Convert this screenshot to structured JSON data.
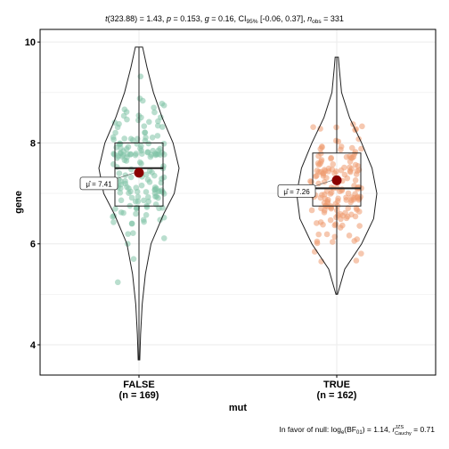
{
  "chart_data": {
    "type": "violin",
    "title": "t(323.88) = 1.43, p = 0.153, ĝ = 0.16, CI95% [-0.06, 0.37], n_obs = 331",
    "title_parts": {
      "t": "t",
      "t_value": "(323.88) = 1.43, ",
      "p": "p",
      "p_value": " = 0.153, ",
      "g": "g",
      "g_value": " = 0.16, CI",
      "ci_sub": "95%",
      "ci_value": " [-0.06, 0.37], ",
      "n": "n",
      "n_sub": "obs",
      "n_value": " = 331"
    },
    "subtitle": "In favor of null: logₑ(BF01) = 1.14, r^JZS_Cauchy = 0.71",
    "caption_parts": {
      "lead": "In favor of null: log",
      "e_sub": "e",
      "bf": "(BF",
      "bf_sub": "01",
      "close": ") = 1.14, ",
      "r": "r",
      "r_sup": "JZS",
      "r_sub": "Cauchy",
      "r_value": " = 0.71"
    },
    "xlabel": "mut",
    "ylabel": "gene",
    "ylim": [
      3.4,
      10.25
    ],
    "yticks": [
      4,
      6,
      8,
      10
    ],
    "grid": true,
    "groups": [
      {
        "name": "FALSE",
        "n_label": "(n = 169)",
        "color": "#7fc3a6",
        "mean": 7.41,
        "mean_label": "μ̂ = 7.41",
        "q1": 6.75,
        "median": 7.5,
        "q3": 8.0,
        "whisker_low": 3.7,
        "whisker_high": 9.9,
        "violin": [
          [
            3.7,
            0.02
          ],
          [
            4.2,
            0.04
          ],
          [
            4.8,
            0.08
          ],
          [
            5.4,
            0.16
          ],
          [
            6.0,
            0.3
          ],
          [
            6.6,
            0.62
          ],
          [
            7.0,
            0.88
          ],
          [
            7.5,
            1.0
          ],
          [
            8.0,
            0.85
          ],
          [
            8.5,
            0.58
          ],
          [
            9.0,
            0.36
          ],
          [
            9.5,
            0.2
          ],
          [
            9.9,
            0.09
          ]
        ]
      },
      {
        "name": "TRUE",
        "n_label": "(n = 162)",
        "color": "#ee9a70",
        "mean": 7.26,
        "mean_label": "μ̂ = 7.26",
        "q1": 6.75,
        "median": 7.1,
        "q3": 7.8,
        "whisker_low": 5.0,
        "whisker_high": 9.7,
        "violin": [
          [
            5.0,
            0.02
          ],
          [
            5.5,
            0.2
          ],
          [
            6.0,
            0.62
          ],
          [
            6.5,
            0.92
          ],
          [
            7.0,
            1.0
          ],
          [
            7.5,
            0.88
          ],
          [
            8.0,
            0.62
          ],
          [
            8.5,
            0.32
          ],
          [
            9.0,
            0.12
          ],
          [
            9.5,
            0.06
          ],
          [
            9.7,
            0.04
          ]
        ]
      }
    ]
  },
  "colors": {
    "mean_point": "#8b0000",
    "grid": "#ebebeb",
    "frame": "#000000"
  }
}
